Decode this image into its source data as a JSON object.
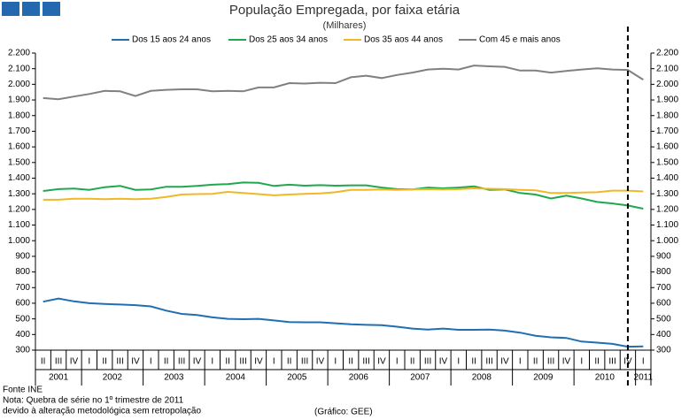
{
  "chart_data": {
    "type": "line",
    "title": "População Empregada, por faixa etária",
    "subtitle": "(Milhares)",
    "categories": [
      "II",
      "III",
      "IV",
      "I",
      "II",
      "III",
      "IV",
      "I",
      "II",
      "III",
      "IV",
      "I",
      "II",
      "III",
      "IV",
      "I",
      "II",
      "III",
      "IV",
      "I",
      "II",
      "III",
      "IV",
      "I",
      "II",
      "III",
      "IV",
      "I",
      "II",
      "III",
      "IV",
      "I",
      "II",
      "III",
      "IV",
      "I",
      "II",
      "III",
      "IV",
      "I"
    ],
    "years": [
      "2001",
      "2002",
      "2003",
      "2004",
      "2005",
      "2006",
      "2007",
      "2008",
      "2009",
      "2010",
      "2011"
    ],
    "series": [
      {
        "name": "Dos 15 aos 24 anos",
        "color": "#1f6fb2",
        "values": [
          610,
          630,
          612,
          600,
          595,
          592,
          588,
          580,
          553,
          532,
          525,
          510,
          500,
          498,
          500,
          490,
          480,
          478,
          478,
          472,
          465,
          462,
          460,
          450,
          438,
          432,
          438,
          430,
          430,
          432,
          425,
          412,
          392,
          382,
          378,
          355,
          348,
          340,
          322,
          324
        ]
      },
      {
        "name": "Dos 25 aos 34 anos",
        "color": "#1fa84c",
        "values": [
          1318,
          1330,
          1333,
          1325,
          1342,
          1350,
          1325,
          1328,
          1345,
          1345,
          1350,
          1358,
          1362,
          1372,
          1370,
          1350,
          1358,
          1352,
          1355,
          1352,
          1354,
          1354,
          1340,
          1330,
          1328,
          1340,
          1335,
          1340,
          1348,
          1325,
          1328,
          1305,
          1295,
          1270,
          1288,
          1270,
          1248,
          1238,
          1225,
          1205
        ]
      },
      {
        "name": "Dos 35 aos 44 anos",
        "color": "#f0b824",
        "values": [
          1262,
          1262,
          1268,
          1268,
          1265,
          1268,
          1265,
          1268,
          1280,
          1295,
          1298,
          1300,
          1312,
          1305,
          1298,
          1290,
          1295,
          1300,
          1302,
          1310,
          1325,
          1325,
          1328,
          1325,
          1328,
          1330,
          1328,
          1330,
          1335,
          1332,
          1330,
          1325,
          1322,
          1305,
          1305,
          1308,
          1310,
          1320,
          1320,
          1315
        ]
      },
      {
        "name": "Com 45 e mais anos",
        "color": "#808080",
        "values": [
          1912,
          1905,
          1922,
          1938,
          1958,
          1955,
          1925,
          1958,
          1965,
          1968,
          1968,
          1955,
          1958,
          1955,
          1980,
          1980,
          2008,
          2005,
          2010,
          2008,
          2045,
          2055,
          2040,
          2060,
          2075,
          2095,
          2100,
          2095,
          2120,
          2115,
          2112,
          2088,
          2088,
          2075,
          2085,
          2095,
          2102,
          2095,
          2092,
          2030
        ]
      }
    ],
    "ylim": [
      300,
      2200
    ],
    "yticks": [
      300,
      400,
      500,
      600,
      700,
      800,
      900,
      {
        "value": 1000,
        "label": "1.000"
      },
      {
        "value": 1100,
        "label": "1.100"
      },
      {
        "value": 1200,
        "label": "1.200"
      },
      {
        "value": 1300,
        "label": "1.300"
      },
      {
        "value": 1400,
        "label": "1.400"
      },
      {
        "value": 1500,
        "label": "1.500"
      },
      {
        "value": 1600,
        "label": "1.600"
      },
      {
        "value": 1700,
        "label": "1.700"
      },
      {
        "value": 1800,
        "label": "1.800"
      },
      {
        "value": 1900,
        "label": "1.900"
      },
      {
        "value": 2000,
        "label": "2.000"
      },
      {
        "value": 2100,
        "label": "2.100"
      },
      {
        "value": 2200,
        "label": "2.200"
      }
    ],
    "y2lim": [
      300,
      2200
    ],
    "y2ticks": [
      300,
      400,
      500,
      600,
      700,
      800,
      900,
      {
        "value": 1000,
        "label": "1.000"
      },
      {
        "value": 1100,
        "label": "1.100"
      },
      {
        "value": 1200,
        "label": "1.200"
      },
      {
        "value": 1300,
        "label": "1.300"
      },
      {
        "value": 1400,
        "label": "1.400"
      },
      {
        "value": 1500,
        "label": "1.500"
      },
      {
        "value": 1600,
        "label": "1.600"
      },
      {
        "value": 1700,
        "label": "1.700"
      },
      {
        "value": 1800,
        "label": "1.800"
      },
      {
        "value": 1900,
        "label": "1.900"
      },
      {
        "value": 2000,
        "label": "2.000"
      },
      {
        "value": 2100,
        "label": "2.100"
      },
      {
        "value": 2200,
        "label": "2.200"
      }
    ],
    "vline_index": 38,
    "legend": "top",
    "notes": [
      "Fonte INE",
      "Nota: Quebra de série no 1º trimestre de 2011",
      "devido à alteração metodológica sem retropolação"
    ],
    "credit": "(Gráfico: GEE)"
  }
}
